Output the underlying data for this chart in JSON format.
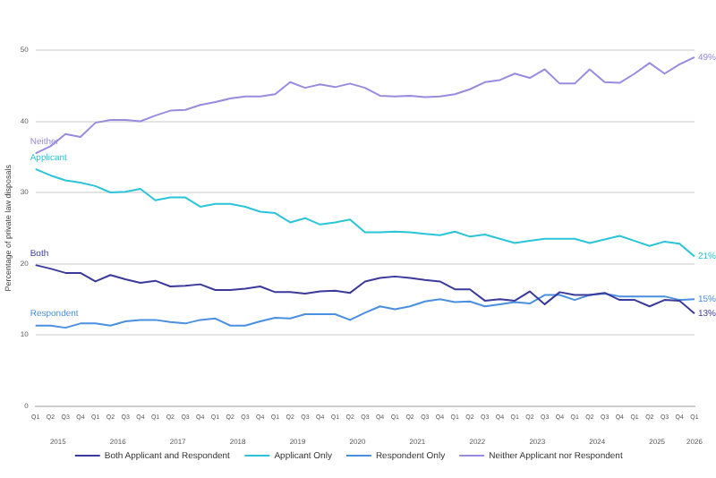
{
  "chart_data": {
    "type": "line",
    "ylabel": "Percentage of private law disposals",
    "categories": [
      "Q1",
      "Q2",
      "Q3",
      "Q4",
      "Q1",
      "Q2",
      "Q3",
      "Q4",
      "Q1",
      "Q2",
      "Q3",
      "Q4",
      "Q1",
      "Q2",
      "Q3",
      "Q4",
      "Q1",
      "Q2",
      "Q3",
      "Q4",
      "Q1",
      "Q2",
      "Q3",
      "Q4",
      "Q1",
      "Q2",
      "Q3",
      "Q4",
      "Q1",
      "Q2",
      "Q3",
      "Q4",
      "Q1",
      "Q2",
      "Q3",
      "Q4",
      "Q1",
      "Q2",
      "Q3",
      "Q4",
      "Q1",
      "Q2",
      "Q3",
      "Q4",
      "Q1"
    ],
    "series": [
      {
        "name": "Both Applicant and Respondent",
        "color": "#3b3a9c",
        "values": [
          19.8,
          19.3,
          18.7,
          18.7,
          17.5,
          18.4,
          17.8,
          17.3,
          17.6,
          16.8,
          16.9,
          17.1,
          16.3,
          16.3,
          16.5,
          16.8,
          16.0,
          16.0,
          15.8,
          16.1,
          16.2,
          15.9,
          17.5,
          18.0,
          18.2,
          18.0,
          17.7,
          17.5,
          16.4,
          16.4,
          14.8,
          15.0,
          14.8,
          16.1,
          14.3,
          16.0,
          15.6,
          15.6,
          15.9,
          14.9,
          14.9,
          14.0,
          14.9,
          14.8,
          13
        ],
        "value_labels": [
          null,
          null,
          null,
          null,
          null,
          null,
          null,
          null,
          null,
          null,
          null,
          null,
          null,
          null,
          null,
          null,
          null,
          null,
          null,
          null,
          null,
          null,
          null,
          null,
          null,
          null,
          null,
          null,
          null,
          null,
          null,
          null,
          null,
          null,
          null,
          null,
          null,
          null,
          null,
          null,
          null,
          null,
          null,
          null,
          "13%"
        ]
      },
      {
        "name": "Applicant Only",
        "color": "#2bc4d8",
        "values": [
          33.3,
          32.4,
          31.7,
          31.4,
          30.9,
          30.0,
          30.1,
          30.5,
          28.9,
          29.3,
          29.3,
          28.0,
          28.4,
          28.4,
          28.0,
          27.3,
          27.1,
          25.8,
          26.4,
          25.5,
          25.8,
          26.2,
          24.4,
          24.4,
          24.5,
          24.4,
          24.2,
          24.0,
          24.5,
          23.8,
          24.1,
          23.5,
          22.9,
          23.2,
          23.5,
          23.5,
          23.5,
          22.9,
          23.4,
          23.9,
          23.2,
          22.5,
          23.1,
          22.8,
          21
        ],
        "value_labels": [
          null,
          null,
          null,
          null,
          null,
          null,
          null,
          null,
          null,
          null,
          null,
          null,
          null,
          null,
          null,
          null,
          null,
          null,
          null,
          null,
          null,
          null,
          null,
          null,
          null,
          null,
          null,
          null,
          null,
          null,
          null,
          null,
          null,
          null,
          null,
          null,
          null,
          null,
          null,
          null,
          null,
          null,
          null,
          null,
          "21%"
        ]
      },
      {
        "name": "Respondent Only",
        "color": "#4a8fe0",
        "values": [
          11.3,
          11.3,
          11.0,
          11.6,
          11.6,
          11.3,
          11.9,
          12.1,
          12.1,
          11.8,
          11.6,
          12.1,
          12.3,
          11.3,
          11.3,
          11.9,
          12.4,
          12.3,
          12.9,
          12.9,
          12.9,
          12.1,
          13.1,
          14.0,
          13.6,
          14.0,
          14.7,
          15.0,
          14.6,
          14.7,
          14.0,
          14.3,
          14.6,
          14.4,
          15.6,
          15.6,
          14.9,
          15.6,
          15.8,
          15.4,
          15.4,
          15.4,
          15.4,
          14.9,
          15
        ],
        "value_labels": [
          null,
          null,
          null,
          null,
          null,
          null,
          null,
          null,
          null,
          null,
          null,
          null,
          null,
          null,
          null,
          null,
          null,
          null,
          null,
          null,
          null,
          null,
          null,
          null,
          null,
          null,
          null,
          null,
          null,
          null,
          null,
          null,
          null,
          null,
          null,
          null,
          null,
          null,
          null,
          null,
          null,
          null,
          null,
          null,
          "15%"
        ]
      },
      {
        "name": "Neither Applicant nor Respondent",
        "color": "#9a8ae0",
        "values": [
          35.5,
          36.5,
          38.2,
          37.8,
          39.8,
          40.2,
          40.2,
          40.0,
          40.8,
          41.5,
          41.6,
          42.3,
          42.7,
          43.2,
          43.5,
          43.5,
          43.8,
          45.5,
          44.7,
          45.2,
          44.8,
          45.3,
          44.7,
          43.6,
          43.5,
          43.6,
          43.4,
          43.5,
          43.8,
          44.5,
          45.5,
          45.8,
          46.7,
          46.1,
          47.3,
          45.3,
          45.3,
          47.3,
          45.5,
          45.4,
          46.7,
          48.2,
          46.7,
          48.0,
          49
        ],
        "value_labels": [
          null,
          null,
          null,
          null,
          null,
          null,
          null,
          null,
          null,
          null,
          null,
          null,
          null,
          null,
          null,
          null,
          null,
          null,
          null,
          null,
          null,
          null,
          null,
          null,
          null,
          null,
          null,
          null,
          null,
          null,
          null,
          null,
          null,
          null,
          null,
          null,
          null,
          null,
          null,
          null,
          null,
          null,
          null,
          null,
          "49%"
        ]
      }
    ],
    "annotations": [
      "Both",
      "Applicant",
      "Respondent",
      "Neither",
      "2015",
      "2016",
      "2017",
      "2018",
      "2019",
      "2020",
      "2021",
      "2022",
      "2023",
      "2024",
      "2025",
      "2026"
    ],
    "ylim": [
      0,
      50
    ],
    "yticks": [
      0,
      10,
      20,
      30,
      40,
      50
    ],
    "grid": "y",
    "legend": "bottom",
    "marker": "none",
    "line_style": "solid"
  }
}
